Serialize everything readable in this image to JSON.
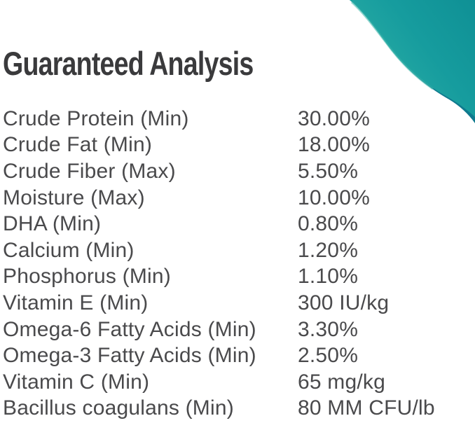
{
  "header": {
    "title": "Guaranteed Analysis"
  },
  "analysis": {
    "rows": [
      {
        "label": "Crude Protein (Min)",
        "value": "30.00%"
      },
      {
        "label": "Crude Fat (Min)",
        "value": "18.00%"
      },
      {
        "label": "Crude Fiber (Max)",
        "value": "5.50%"
      },
      {
        "label": "Moisture (Max)",
        "value": "10.00%"
      },
      {
        "label": "DHA (Min)",
        "value": "0.80%"
      },
      {
        "label": "Calcium (Min)",
        "value": "1.20%"
      },
      {
        "label": "Phosphorus (Min)",
        "value": "1.10%"
      },
      {
        "label": "Vitamin E (Min)",
        "value": "300 IU/kg"
      },
      {
        "label": "Omega-6 Fatty Acids (Min)",
        "value": "3.30%"
      },
      {
        "label": "Omega-3 Fatty Acids (Min)",
        "value": "2.50%"
      },
      {
        "label": "Vitamin C (Min)",
        "value": "65 mg/kg"
      },
      {
        "label": "Bacillus coagulans (Min)",
        "value": "80 MM CFU/lb"
      }
    ]
  },
  "colors": {
    "title_text": "#3a3a3c",
    "body_text": "#4a4a4c",
    "teal_light": "#2eb0a6",
    "teal_main": "#169c9e",
    "teal_deep": "#0f9095",
    "teal_dark_edge": "#0f7a8e",
    "teal_highlight": "#3cb7ac",
    "background": "#ffffff"
  }
}
